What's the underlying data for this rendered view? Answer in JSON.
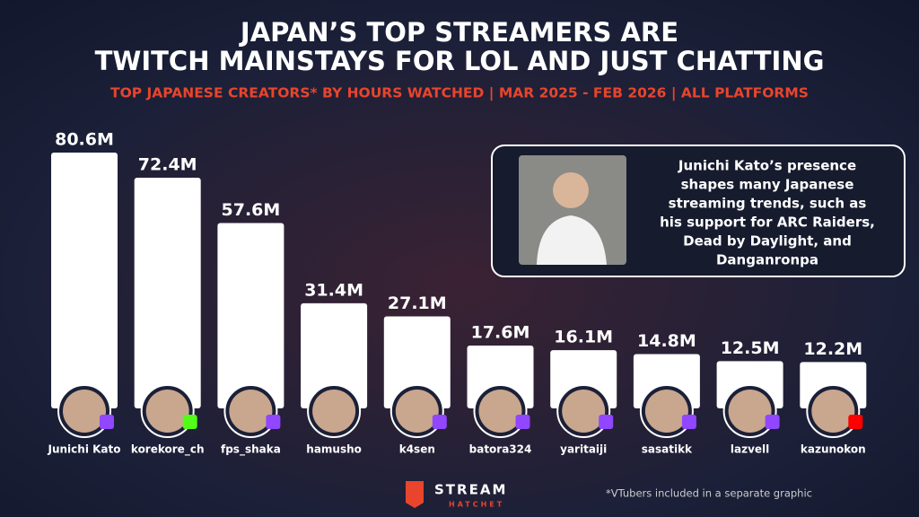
{
  "chart_data": {
    "type": "bar",
    "title": [
      "JAPAN’S TOP STREAMERS ARE",
      "TWITCH MAINSTAYS FOR LOL AND JUST CHATTING"
    ],
    "subtitle": "TOP JAPANESE CREATORS* BY HOURS WATCHED | MAR 2025 - FEB 2026 | ALL PLATFORMS",
    "categories": [
      "Junichi Kato",
      "korekore_ch",
      "fps_shaka",
      "hamusho",
      "k4sen",
      "batora324",
      "yaritaiji",
      "sasatikk",
      "lazvell",
      "kazunokon"
    ],
    "values": [
      80.6,
      72.4,
      57.6,
      31.4,
      27.1,
      17.6,
      16.1,
      14.8,
      12.5,
      12.2
    ],
    "value_labels": [
      "80.6M",
      "72.4M",
      "57.6M",
      "31.4M",
      "27.1M",
      "17.6M",
      "16.1M",
      "14.8M",
      "12.5M",
      "12.2M"
    ],
    "color": "#ffffff",
    "annotation": [
      "Junichi Kato’s presence",
      "shapes many Japanese",
      "streaming trends, such as",
      "his support for ARC Raiders,",
      "Dead by Daylight, and",
      "Danganronpa"
    ],
    "footnote": "*VTubers included in a separate graphic",
    "brand": [
      "STREAM",
      "HATCHET"
    ]
  }
}
